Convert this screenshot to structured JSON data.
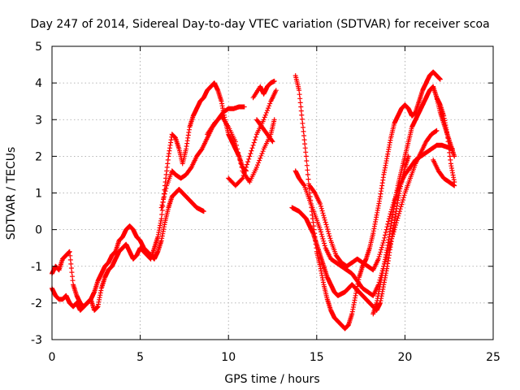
{
  "chart_data": {
    "type": "scatter",
    "title": "Day 247 of 2014, Sidereal Day-to-day VTEC variation (SDTVAR) for receiver scoa",
    "xlabel": "GPS time / hours",
    "ylabel": "SDTVAR / TECUs",
    "xlim": [
      0,
      25
    ],
    "ylim": [
      -3,
      5
    ],
    "xticks": [
      "0",
      "5",
      "10",
      "15",
      "20",
      "25"
    ],
    "yticks": [
      "-3",
      "-2",
      "-1",
      "0",
      "1",
      "2",
      "3",
      "4",
      "5"
    ],
    "grid": true,
    "marker": "+",
    "color": "#ff0000",
    "series": [
      {
        "x": [
          0.0,
          0.2,
          0.4,
          0.6,
          0.8,
          1.0,
          1.2,
          1.4,
          1.6,
          1.8,
          2.0,
          2.2,
          2.4,
          2.6,
          2.8,
          3.0,
          3.2,
          3.4,
          3.6,
          3.8,
          4.0,
          4.2,
          4.4,
          4.6,
          4.8,
          5.0,
          5.2,
          5.4,
          5.6,
          5.8,
          6.0,
          6.2,
          6.4,
          6.6,
          6.8,
          7.0,
          7.2,
          7.4,
          7.6,
          7.8,
          8.0,
          8.2,
          8.4,
          8.6,
          8.8,
          9.0,
          9.2,
          9.4,
          9.6,
          9.8,
          10.0,
          10.2,
          10.4,
          10.6,
          10.8,
          11.0
        ],
        "y": [
          -1.2,
          -1.0,
          -1.1,
          -0.8,
          -0.7,
          -0.6,
          -1.5,
          -1.8,
          -2.0,
          -2.1,
          -2.0,
          -1.9,
          -2.2,
          -2.1,
          -1.6,
          -1.3,
          -1.1,
          -1.0,
          -0.8,
          -0.6,
          -0.5,
          -0.4,
          -0.6,
          -0.8,
          -0.7,
          -0.5,
          -0.6,
          -0.7,
          -0.8,
          -0.5,
          -0.2,
          0.3,
          1.2,
          2.0,
          2.6,
          2.5,
          2.2,
          1.8,
          2.2,
          2.8,
          3.1,
          3.3,
          3.5,
          3.6,
          3.8,
          3.9,
          4.0,
          3.8,
          3.5,
          3.0,
          2.6,
          2.4,
          2.2,
          2.0,
          1.7,
          1.6
        ]
      },
      {
        "x": [
          0.0,
          0.2,
          0.4,
          0.6,
          0.8,
          1.0,
          1.2,
          1.4,
          1.6,
          1.8,
          2.0,
          2.2,
          2.4,
          2.6,
          2.8,
          3.0,
          3.2,
          3.4,
          3.6,
          3.8,
          4.0,
          4.2,
          4.4,
          4.6,
          4.8,
          5.0,
          5.2,
          5.4,
          5.6,
          5.8,
          6.0,
          6.2,
          6.4,
          6.6,
          6.8,
          7.0,
          7.2,
          7.4,
          7.6,
          7.8,
          8.0,
          8.2,
          8.4,
          8.6
        ],
        "y": [
          -1.6,
          -1.8,
          -1.9,
          -1.9,
          -1.8,
          -2.0,
          -2.1,
          -2.0,
          -2.2,
          -2.1,
          -2.0,
          -1.9,
          -1.7,
          -1.4,
          -1.2,
          -1.0,
          -0.9,
          -0.7,
          -0.6,
          -0.3,
          -0.2,
          0.0,
          0.1,
          0.0,
          -0.2,
          -0.3,
          -0.5,
          -0.6,
          -0.7,
          -0.8,
          -0.6,
          -0.3,
          0.2,
          0.6,
          0.9,
          1.0,
          1.1,
          1.0,
          0.9,
          0.8,
          0.7,
          0.6,
          0.55,
          0.5
        ]
      },
      {
        "x": [
          6.2,
          6.5,
          6.8,
          7.0,
          7.3,
          7.6,
          7.9,
          8.2,
          8.5,
          8.8,
          9.1,
          9.4,
          9.7,
          10.0,
          10.3,
          10.6,
          10.9
        ],
        "y": [
          0.6,
          1.2,
          1.6,
          1.5,
          1.4,
          1.5,
          1.7,
          2.0,
          2.2,
          2.5,
          2.8,
          3.0,
          3.2,
          3.3,
          3.3,
          3.35,
          3.35
        ]
      },
      {
        "x": [
          8.8,
          9.2,
          9.6,
          10.0,
          10.4,
          10.8,
          11.2,
          11.6,
          12.0,
          12.4,
          12.6
        ],
        "y": [
          2.6,
          2.9,
          3.1,
          2.8,
          2.4,
          1.6,
          1.3,
          1.7,
          2.2,
          2.6,
          3.0
        ]
      },
      {
        "x": [
          10.0,
          10.4,
          10.8,
          11.2,
          11.6,
          12.0,
          12.4,
          12.7
        ],
        "y": [
          1.4,
          1.2,
          1.4,
          2.0,
          2.6,
          3.0,
          3.5,
          3.8
        ]
      },
      {
        "x": [
          11.4,
          11.8,
          12.0,
          12.2,
          12.4,
          12.6
        ],
        "y": [
          3.6,
          3.9,
          3.7,
          3.9,
          4.0,
          4.05
        ]
      },
      {
        "x": [
          11.6,
          11.9,
          12.2,
          12.5
        ],
        "y": [
          3.0,
          2.8,
          2.6,
          2.4
        ]
      },
      {
        "x": [
          13.8,
          14.0,
          14.2,
          14.4,
          14.6,
          14.8,
          15.0,
          15.2,
          15.4,
          15.6,
          15.8,
          16.0,
          16.2,
          16.4,
          16.6,
          16.8,
          17.0,
          17.2,
          17.4,
          17.6,
          17.8,
          18.0,
          18.2,
          18.4,
          18.6,
          18.8,
          19.0,
          19.2,
          19.4,
          19.6,
          19.8,
          20.0,
          20.2,
          20.4,
          20.6,
          20.8,
          21.0,
          21.2,
          21.4,
          21.6,
          21.8,
          22.0
        ],
        "y": [
          4.2,
          3.8,
          2.9,
          2.0,
          1.0,
          0.2,
          -0.6,
          -1.0,
          -1.5,
          -1.9,
          -2.2,
          -2.4,
          -2.5,
          -2.6,
          -2.7,
          -2.6,
          -2.3,
          -1.8,
          -1.3,
          -1.0,
          -0.8,
          -0.5,
          -0.1,
          0.4,
          0.9,
          1.5,
          2.0,
          2.5,
          2.9,
          3.1,
          3.3,
          3.4,
          3.3,
          3.1,
          3.2,
          3.5,
          3.8,
          4.0,
          4.2,
          4.3,
          4.2,
          4.1
        ]
      },
      {
        "x": [
          13.8,
          14.0,
          14.3,
          14.6,
          14.9,
          15.2,
          15.5,
          15.8,
          16.1,
          16.4,
          16.7,
          17.0,
          17.3,
          17.6,
          17.9,
          18.2,
          18.5,
          18.8,
          19.1,
          19.4,
          19.7,
          20.0,
          20.3,
          20.6,
          20.9,
          21.2,
          21.5,
          21.8
        ],
        "y": [
          1.6,
          1.4,
          1.2,
          0.8,
          0.4,
          0.0,
          -0.5,
          -0.8,
          -0.9,
          -1.0,
          -1.1,
          -1.2,
          -1.4,
          -1.6,
          -1.7,
          -1.8,
          -1.5,
          -1.0,
          -0.5,
          0.0,
          0.5,
          1.0,
          1.4,
          1.8,
          2.1,
          2.4,
          2.6,
          2.7
        ]
      },
      {
        "x": [
          14.6,
          14.9,
          15.2,
          15.5,
          15.8,
          16.1,
          16.4,
          16.7,
          17.0,
          17.3,
          17.6,
          17.9,
          18.2,
          18.5,
          18.8,
          19.1,
          19.4,
          19.7,
          20.0,
          20.3,
          20.6,
          20.9,
          21.2,
          21.5,
          21.8,
          22.1,
          22.4,
          22.7
        ],
        "y": [
          1.2,
          1.0,
          0.7,
          0.2,
          -0.3,
          -0.7,
          -0.9,
          -1.0,
          -0.9,
          -0.8,
          -0.9,
          -1.0,
          -1.1,
          -0.8,
          -0.3,
          0.3,
          0.8,
          1.2,
          1.5,
          1.7,
          1.9,
          2.0,
          2.1,
          2.2,
          2.3,
          2.3,
          2.25,
          2.2
        ]
      },
      {
        "x": [
          13.6,
          13.8,
          14.0,
          14.2,
          14.4,
          14.6,
          14.8,
          15.0,
          15.2,
          15.4,
          15.6,
          15.8,
          16.0,
          16.2,
          16.4,
          16.6,
          16.8,
          17.0,
          17.2,
          17.4,
          17.6,
          17.8,
          18.0,
          18.2,
          18.4,
          18.6,
          18.8,
          19.0,
          19.2,
          19.4,
          19.6,
          19.8,
          20.0,
          20.2
        ],
        "y": [
          0.6,
          0.55,
          0.5,
          0.4,
          0.3,
          0.1,
          -0.1,
          -0.4,
          -0.7,
          -1.0,
          -1.3,
          -1.5,
          -1.7,
          -1.8,
          -1.75,
          -1.7,
          -1.6,
          -1.5,
          -1.6,
          -1.7,
          -1.8,
          -1.9,
          -2.0,
          -2.1,
          -2.2,
          -2.0,
          -1.5,
          -1.0,
          -0.4,
          0.2,
          0.8,
          1.3,
          1.7,
          2.0
        ]
      },
      {
        "x": [
          18.2,
          18.4,
          18.6,
          18.8,
          19.0,
          19.2,
          19.4,
          19.6,
          19.8,
          20.0,
          20.2,
          20.4,
          20.6,
          20.8,
          21.0,
          21.2,
          21.4,
          21.6,
          21.8,
          22.0,
          22.2,
          22.4,
          22.6,
          22.8
        ],
        "y": [
          -2.3,
          -2.0,
          -1.5,
          -1.0,
          -0.5,
          0.1,
          0.7,
          1.2,
          1.6,
          2.0,
          2.4,
          2.8,
          3.0,
          3.2,
          3.4,
          3.6,
          3.8,
          3.9,
          3.6,
          3.2,
          2.9,
          2.6,
          2.3,
          2.0
        ]
      },
      {
        "x": [
          21.8,
          22.0,
          22.2,
          22.4,
          22.6,
          22.8
        ],
        "y": [
          3.6,
          3.4,
          3.1,
          2.6,
          1.8,
          1.3
        ]
      },
      {
        "x": [
          21.6,
          21.9,
          22.2,
          22.5,
          22.8
        ],
        "y": [
          1.9,
          1.6,
          1.4,
          1.3,
          1.2
        ]
      }
    ]
  }
}
